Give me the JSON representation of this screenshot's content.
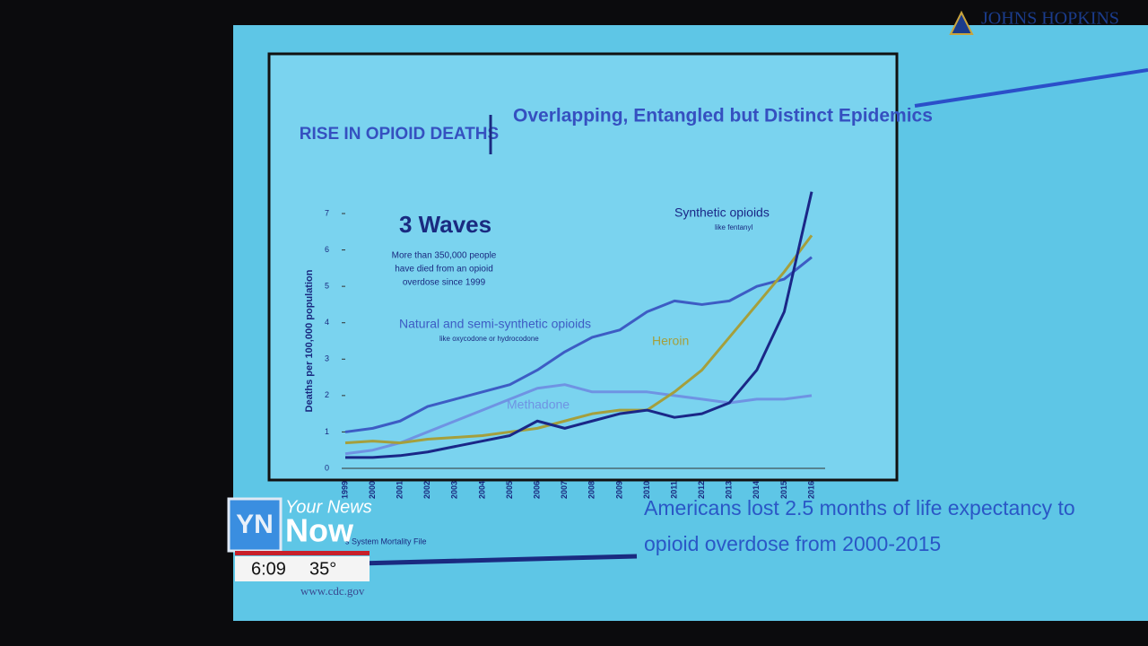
{
  "chart_data": {
    "type": "line",
    "header": "RISE IN OPIOID DEATHS",
    "title": "Overlapping, Entangled but Distinct Epidemics",
    "annotation": "3 Waves",
    "annotation_lines": [
      "More than 350,000 people",
      "have died from an opioid",
      "overdose since 1999"
    ],
    "y_label": "Deaths per 100,000 population",
    "categories": [
      "1999",
      "2000",
      "2001",
      "2002",
      "2003",
      "2004",
      "2005",
      "2006",
      "2007",
      "2008",
      "2009",
      "2010",
      "2011",
      "2012",
      "2013",
      "2014",
      "2015",
      "2016"
    ],
    "series": [
      {
        "name": "Natural and semi-synthetic opioids",
        "note": "like oxycodone or hydrocodone",
        "color": "#3d5cc4",
        "values": [
          1.0,
          1.1,
          1.3,
          1.7,
          1.9,
          2.1,
          2.3,
          2.7,
          3.2,
          3.6,
          3.8,
          4.3,
          4.6,
          4.5,
          4.6,
          5.0,
          5.2,
          5.8
        ]
      },
      {
        "name": "Methadone",
        "color": "#6f93e3",
        "values": [
          0.4,
          0.5,
          0.7,
          1.0,
          1.3,
          1.6,
          1.9,
          2.2,
          2.3,
          2.1,
          2.1,
          2.1,
          2.0,
          1.9,
          1.8,
          1.9,
          1.9,
          2.0
        ]
      },
      {
        "name": "Heroin",
        "color": "#a59f3c",
        "values": [
          0.7,
          0.75,
          0.7,
          0.8,
          0.85,
          0.9,
          1.0,
          1.1,
          1.3,
          1.5,
          1.6,
          1.6,
          2.1,
          2.7,
          3.6,
          4.5,
          5.4,
          6.4
        ]
      },
      {
        "name": "Synthetic opioids",
        "note": "like fentanyl",
        "color": "#1a2787",
        "values": [
          0.3,
          0.3,
          0.35,
          0.45,
          0.6,
          0.75,
          0.9,
          1.3,
          1.1,
          1.3,
          1.5,
          1.6,
          1.4,
          1.5,
          1.8,
          2.7,
          4.3,
          7.6
        ]
      }
    ],
    "ylim": [
      0,
      7
    ],
    "yticks": [
      0,
      1,
      2,
      3,
      4,
      5,
      6,
      7
    ],
    "grid": false,
    "source": "s System Mortality File",
    "caption_lines": [
      "Americans lost 2.5 months of life expectancy to",
      "opioid overdose from 2000-2015"
    ],
    "url": "www.cdc.gov"
  },
  "logo": "JOHNS HOPKINS",
  "overlay": {
    "brand_top": "Your News",
    "brand_bottom": "Now",
    "time": "6:09",
    "temperature": "35°"
  }
}
